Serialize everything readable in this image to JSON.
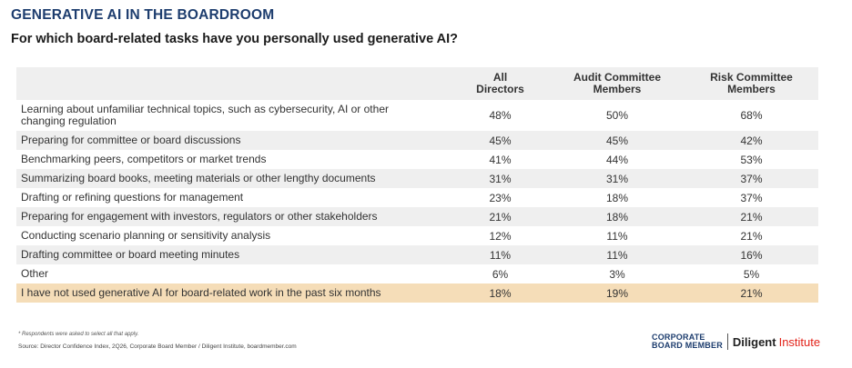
{
  "header": {
    "kicker": "GENERATIVE AI IN THE BOARDROOM",
    "question": "For which board-related tasks have you personally used generative AI?"
  },
  "chart_data": {
    "type": "table",
    "columns": [
      "",
      "All Directors",
      "Audit Committee Members",
      "Risk Committee Members"
    ],
    "column_lines": [
      [
        "All",
        "Directors"
      ],
      [
        "Audit Committee",
        "Members"
      ],
      [
        "Risk Committee",
        "Members"
      ]
    ],
    "rows": [
      {
        "task_lines": [
          "Learning about unfamiliar technical topics, such as cybersecurity, AI or other",
          "changing regulation"
        ],
        "values": [
          "48%",
          "50%",
          "68%"
        ]
      },
      {
        "task": "Preparing for committee or board discussions",
        "values": [
          "45%",
          "45%",
          "42%"
        ]
      },
      {
        "task": "Benchmarking peers, competitors or market trends",
        "values": [
          "41%",
          "44%",
          "53%"
        ]
      },
      {
        "task": "Summarizing board books, meeting materials or other lengthy documents",
        "values": [
          "31%",
          "31%",
          "37%"
        ]
      },
      {
        "task": "Drafting or refining questions for management",
        "values": [
          "23%",
          "18%",
          "37%"
        ]
      },
      {
        "task": "Preparing for engagement with investors, regulators or other stakeholders",
        "values": [
          "21%",
          "18%",
          "21%"
        ]
      },
      {
        "task": "Conducting scenario planning or sensitivity analysis",
        "values": [
          "12%",
          "11%",
          "21%"
        ]
      },
      {
        "task": "Drafting committee or board meeting minutes",
        "values": [
          "11%",
          "11%",
          "16%"
        ]
      },
      {
        "task": "Other",
        "values": [
          "6%",
          "3%",
          "5%"
        ]
      },
      {
        "task": "I have not used generative AI for board-related work in the past six months",
        "values": [
          "18%",
          "19%",
          "21%"
        ]
      }
    ]
  },
  "footer": {
    "footnote": "* Respondents were asked to select all that apply.",
    "source": "Source: Director Confidence Index, 2Q26, Corporate Board Member / Diligent Institute, boardmember.com"
  },
  "logos": {
    "cbm_line1": "CORPORATE",
    "cbm_line2": "BOARD MEMBER",
    "diligent": "Diligent",
    "institute": "Institute"
  },
  "colors": {
    "title_navy": "#1d3d6e",
    "row_shade": "#efefef",
    "highlight_row": "#f5ddb8",
    "institute_red": "#e2231a"
  }
}
